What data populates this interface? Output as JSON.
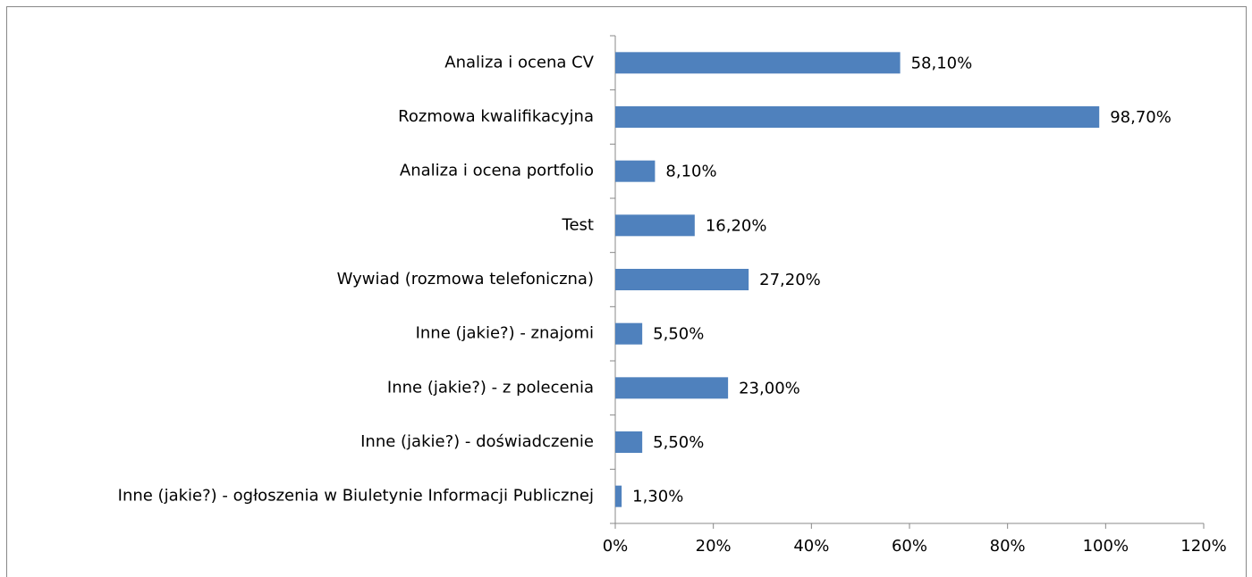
{
  "chart_data": {
    "type": "barh",
    "categories": [
      "Analiza i ocena CV",
      "Rozmowa kwalifikacyjna",
      "Analiza i ocena portfolio",
      "Test",
      "Wywiad (rozmowa telefoniczna)",
      "Inne (jakie?) - znajomi",
      "Inne (jakie?) - z polecenia",
      "Inne (jakie?) - doświadczenie",
      "Inne (jakie?) - ogłoszenia w Biuletynie Informacji Publicznej"
    ],
    "values": [
      58.1,
      98.7,
      8.1,
      16.2,
      27.2,
      5.5,
      23.0,
      5.5,
      1.3
    ],
    "value_labels": [
      "58,10%",
      "98,70%",
      "8,10%",
      "16,20%",
      "27,20%",
      "5,50%",
      "23,00%",
      "5,50%",
      "1,30%"
    ],
    "color": "#4f81bd",
    "xlim": [
      0,
      120
    ],
    "xticks": [
      {
        "value": 0,
        "label": "0%"
      },
      {
        "value": 20,
        "label": "20%"
      },
      {
        "value": 40,
        "label": "40%"
      },
      {
        "value": 60,
        "label": "60%"
      },
      {
        "value": 80,
        "label": "80%"
      },
      {
        "value": 100,
        "label": "100%"
      },
      {
        "value": 120,
        "label": "120%"
      }
    ]
  }
}
